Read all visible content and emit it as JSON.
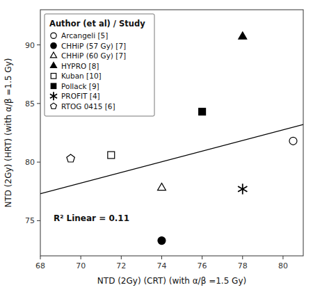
{
  "chart_data": {
    "type": "scatter",
    "xlabel": "NTD (2Gy) (CRT) (with α/β =1.5 Gy)",
    "ylabel": "NTD (2Gy) (HRT) (with α/β =1.5 Gy)",
    "xlim": [
      68,
      81
    ],
    "ylim": [
      72,
      93
    ],
    "xticks": [
      68,
      70,
      72,
      74,
      76,
      78,
      80
    ],
    "yticks": [
      75,
      80,
      85,
      90
    ],
    "grid": false,
    "legend": "upper left",
    "legend_title": "Author (et al) / Study",
    "annotations": [
      {
        "text": "R² Linear = 0.11"
      }
    ],
    "series": [
      {
        "type": "line",
        "color": "black",
        "x": [
          68,
          81
        ],
        "values": [
          77.3,
          83.2
        ]
      },
      {
        "name": "Arcangeli [5]",
        "type": "scatter",
        "marker": "circle",
        "color": "white",
        "x": [
          80.5
        ],
        "values": [
          81.8
        ]
      },
      {
        "name": "CHHiP (57 Gy) [7]",
        "type": "scatter",
        "marker": "circle",
        "color": "black",
        "x": [
          74.0
        ],
        "values": [
          73.3
        ]
      },
      {
        "name": "CHHiP (60 Gy) [7]",
        "type": "scatter",
        "marker": "triangle",
        "color": "white",
        "x": [
          74.0
        ],
        "values": [
          77.8
        ]
      },
      {
        "name": "HYPRO [8]",
        "type": "scatter",
        "marker": "triangle",
        "color": "black",
        "x": [
          78.0
        ],
        "values": [
          90.7
        ]
      },
      {
        "name": "Kuban [10]",
        "type": "scatter",
        "marker": "square",
        "color": "white",
        "x": [
          71.5
        ],
        "values": [
          80.6
        ]
      },
      {
        "name": "Pollack [9]",
        "type": "scatter",
        "marker": "square",
        "color": "black",
        "x": [
          76.0
        ],
        "values": [
          84.3
        ]
      },
      {
        "name": "PROFIT [4]",
        "type": "scatter",
        "marker": "asterisk",
        "color": "black",
        "x": [
          78.0
        ],
        "values": [
          77.7
        ]
      },
      {
        "name": "RTOG 0415 [6]",
        "type": "scatter",
        "marker": "pentagon",
        "color": "white",
        "x": [
          69.5
        ],
        "values": [
          80.3
        ]
      }
    ]
  }
}
